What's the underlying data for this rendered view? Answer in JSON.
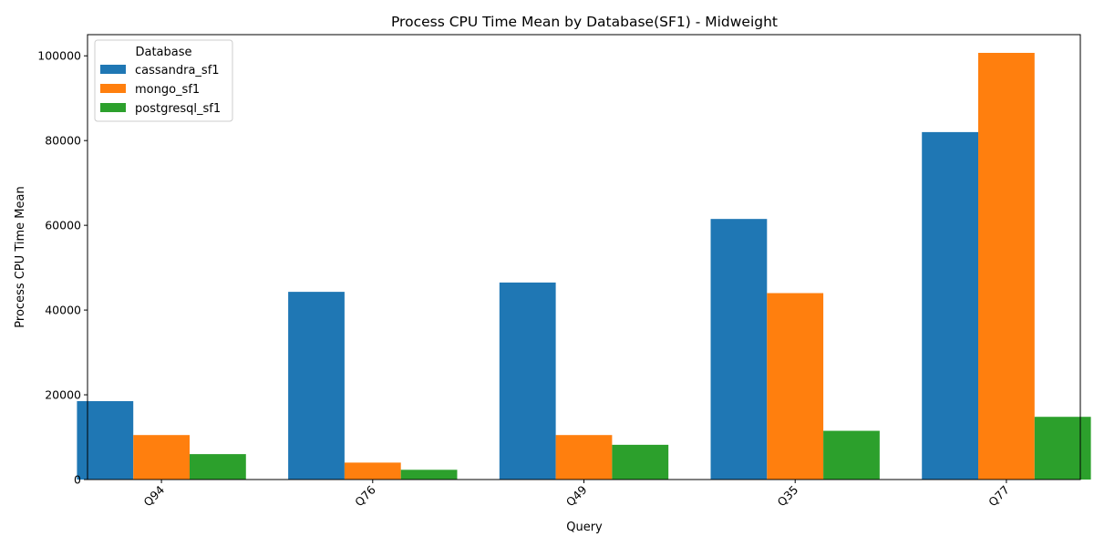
{
  "chart_data": {
    "type": "bar",
    "title": "Process CPU Time Mean by Database(SF1) - Midweight",
    "xlabel": "Query",
    "ylabel": "Process CPU Time Mean",
    "categories": [
      "Q94",
      "Q76",
      "Q49",
      "Q35",
      "Q77"
    ],
    "series": [
      {
        "name": "cassandra_sf1",
        "color": "#1f77b4",
        "values": [
          18500,
          44300,
          46500,
          61500,
          82000
        ]
      },
      {
        "name": "mongo_sf1",
        "color": "#ff7f0e",
        "values": [
          10500,
          4000,
          10500,
          44000,
          100700
        ]
      },
      {
        "name": "postgresql_sf1",
        "color": "#2ca02c",
        "values": [
          6000,
          2300,
          8200,
          11500,
          14800
        ]
      }
    ],
    "ylim": [
      0,
      105000
    ],
    "yticks": [
      0,
      20000,
      40000,
      60000,
      80000,
      100000
    ],
    "legend": {
      "title": "Database",
      "placement": "top-left"
    },
    "grid": false
  }
}
